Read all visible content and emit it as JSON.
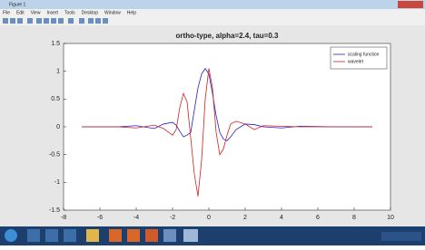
{
  "window": {
    "title": "Figure 1",
    "menu": [
      "File",
      "Edit",
      "View",
      "Insert",
      "Tools",
      "Desktop",
      "Window",
      "Help"
    ]
  },
  "chart_data": {
    "type": "line",
    "title": "ortho-type, alpha=2.4, tau=0.3",
    "x": [
      -7,
      -5,
      -4,
      -3,
      -2.5,
      -2,
      -1.8,
      -1.6,
      -1.4,
      -1.2,
      -1,
      -0.8,
      -0.6,
      -0.4,
      -0.2,
      0,
      0.2,
      0.4,
      0.6,
      0.8,
      1,
      1.2,
      1.5,
      2,
      2.5,
      3,
      4,
      5,
      7,
      9
    ],
    "series": [
      {
        "name": "scaling function",
        "color": "#1f1fd0",
        "values": [
          0,
          0,
          0.02,
          -0.03,
          0.05,
          0.08,
          0.03,
          -0.08,
          -0.18,
          -0.15,
          -0.1,
          0.3,
          0.7,
          0.95,
          1.05,
          0.95,
          0.6,
          0.2,
          -0.1,
          -0.22,
          -0.25,
          -0.18,
          -0.05,
          0.05,
          0.04,
          0,
          -0.02,
          0.01,
          0,
          0
        ]
      },
      {
        "name": "wavelet",
        "color": "#d01f1f",
        "values": [
          0,
          0,
          -0.02,
          0.03,
          -0.03,
          -0.15,
          -0.05,
          0.35,
          0.6,
          0.45,
          -0.2,
          -0.85,
          -1.25,
          -0.6,
          0.5,
          1.05,
          0.7,
          -0.1,
          -0.5,
          -0.4,
          -0.15,
          0.05,
          0.1,
          0.05,
          -0.05,
          0.02,
          0.01,
          0,
          0,
          0
        ]
      }
    ],
    "xlim": [
      -8,
      10
    ],
    "xticks": [
      -8,
      -6,
      -4,
      -2,
      0,
      2,
      4,
      6,
      8,
      10
    ],
    "ylim": [
      -1.5,
      1.5
    ],
    "yticks": [
      -1.5,
      -1,
      -0.5,
      0,
      0.5,
      1,
      1.5
    ],
    "legend": "upper right"
  }
}
